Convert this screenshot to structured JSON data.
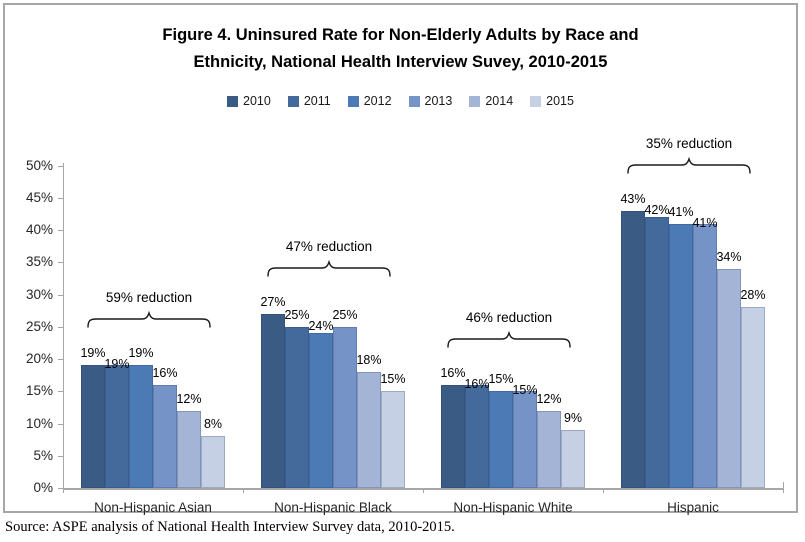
{
  "figure": {
    "title_line1": "Figure 4. Uninsured Rate for Non-Elderly Adults by Race and",
    "title_line2": "Ethnicity, National Health Interview Suvey, 2010-2015",
    "source_note": "Source: ASPE analysis of National Health Interview Survey data, 2010-2015."
  },
  "colors": {
    "axis": "#a6a6a6",
    "frame_border": "#a6a6a6",
    "text": "#000000"
  },
  "chart_data": {
    "type": "bar",
    "title": "Figure 4. Uninsured Rate for Non-Elderly Adults by Race and Ethnicity, National Health Interview Suvey, 2010-2015",
    "categories": [
      "Non-Hispanic Asian",
      "Non-Hispanic Black",
      "Non-Hispanic White",
      "Hispanic"
    ],
    "series": [
      {
        "name": "2010",
        "color": "#3a5b84",
        "values": [
          19,
          27,
          16,
          43
        ]
      },
      {
        "name": "2011",
        "color": "#44699b",
        "values": [
          19,
          25,
          16,
          42
        ]
      },
      {
        "name": "2012",
        "color": "#4c7ab4",
        "values": [
          19,
          24,
          15,
          41
        ]
      },
      {
        "name": "2013",
        "color": "#7593c6",
        "values": [
          16,
          25,
          15,
          41
        ]
      },
      {
        "name": "2014",
        "color": "#a3b4d6",
        "values": [
          12,
          18,
          12,
          34
        ]
      },
      {
        "name": "2015",
        "color": "#c6d0e4",
        "values": [
          8,
          15,
          9,
          28
        ]
      }
    ],
    "annotations": [
      {
        "category": "Non-Hispanic Asian",
        "label": "59% reduction"
      },
      {
        "category": "Non-Hispanic Black",
        "label": "47% reduction"
      },
      {
        "category": "Non-Hispanic White",
        "label": "46% reduction"
      },
      {
        "category": "Hispanic",
        "label": "35% reduction"
      }
    ],
    "y_axis": {
      "min": 0,
      "max": 50,
      "step": 5,
      "format": "{v}%"
    },
    "data_label_format": "{v}%",
    "grid": false,
    "legend_position": "top-center",
    "legend_entries": [
      "2010",
      "2011",
      "2012",
      "2013",
      "2014",
      "2015"
    ]
  }
}
